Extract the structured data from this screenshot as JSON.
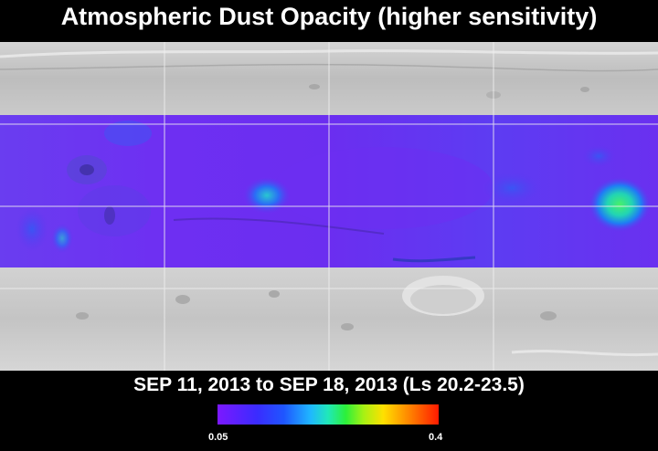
{
  "title": "Atmospheric Dust Opacity (higher sensitivity)",
  "date_range": "SEP 11, 2013 to SEP 18, 2013 (Ls 20.2-23.5)",
  "colorbar": {
    "min_label": "0.05",
    "max_label": "0.4"
  },
  "colors": {
    "background": "#000000",
    "terrain": "#c8c8c8",
    "dust_low": "#7c18ff",
    "dust_high": "#ff1a00"
  }
}
